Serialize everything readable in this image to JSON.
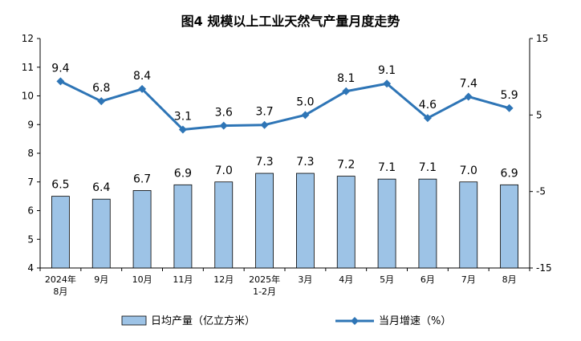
{
  "chart_data": {
    "type": "bar",
    "title": "图4  规模以上工业天然气产量月度走势",
    "categories": [
      [
        "2024年",
        "8月"
      ],
      [
        "9月"
      ],
      [
        "10月"
      ],
      [
        "11月"
      ],
      [
        "12月"
      ],
      [
        "2025年",
        "1-2月"
      ],
      [
        "3月"
      ],
      [
        "4月"
      ],
      [
        "5月"
      ],
      [
        "6月"
      ],
      [
        "7月"
      ],
      [
        "8月"
      ]
    ],
    "left_axis": {
      "ylim": [
        4,
        12
      ],
      "ticks": [
        "4",
        "5",
        "6",
        "7",
        "8",
        "9",
        "10",
        "11",
        "12"
      ]
    },
    "right_axis": {
      "ylim": [
        -15,
        15
      ],
      "ticks": [
        "15",
        "5",
        "-5",
        "-15"
      ]
    },
    "series": [
      {
        "name": "日均产量（亿立方米）",
        "type": "bar",
        "axis": "left",
        "values": [
          6.5,
          6.4,
          6.7,
          6.9,
          7.0,
          7.3,
          7.3,
          7.2,
          7.1,
          7.1,
          7.0,
          6.9
        ],
        "labels": [
          "6.5",
          "6.4",
          "6.7",
          "6.9",
          "7.0",
          "7.3",
          "7.3",
          "7.2",
          "7.1",
          "7.1",
          "7.0",
          "6.9"
        ],
        "color": "#9DC3E6"
      },
      {
        "name": "当月增速（%）",
        "type": "line",
        "axis": "right",
        "values": [
          9.4,
          6.8,
          8.4,
          3.1,
          3.6,
          3.7,
          5.0,
          8.1,
          9.1,
          4.6,
          7.4,
          5.9
        ],
        "labels": [
          "9.4",
          "6.8",
          "8.4",
          "3.1",
          "3.6",
          "3.7",
          "5.0",
          "8.1",
          "9.1",
          "4.6",
          "7.4",
          "5.9"
        ],
        "color": "#2E75B6"
      }
    ],
    "grid": false,
    "legend": "bottom"
  }
}
